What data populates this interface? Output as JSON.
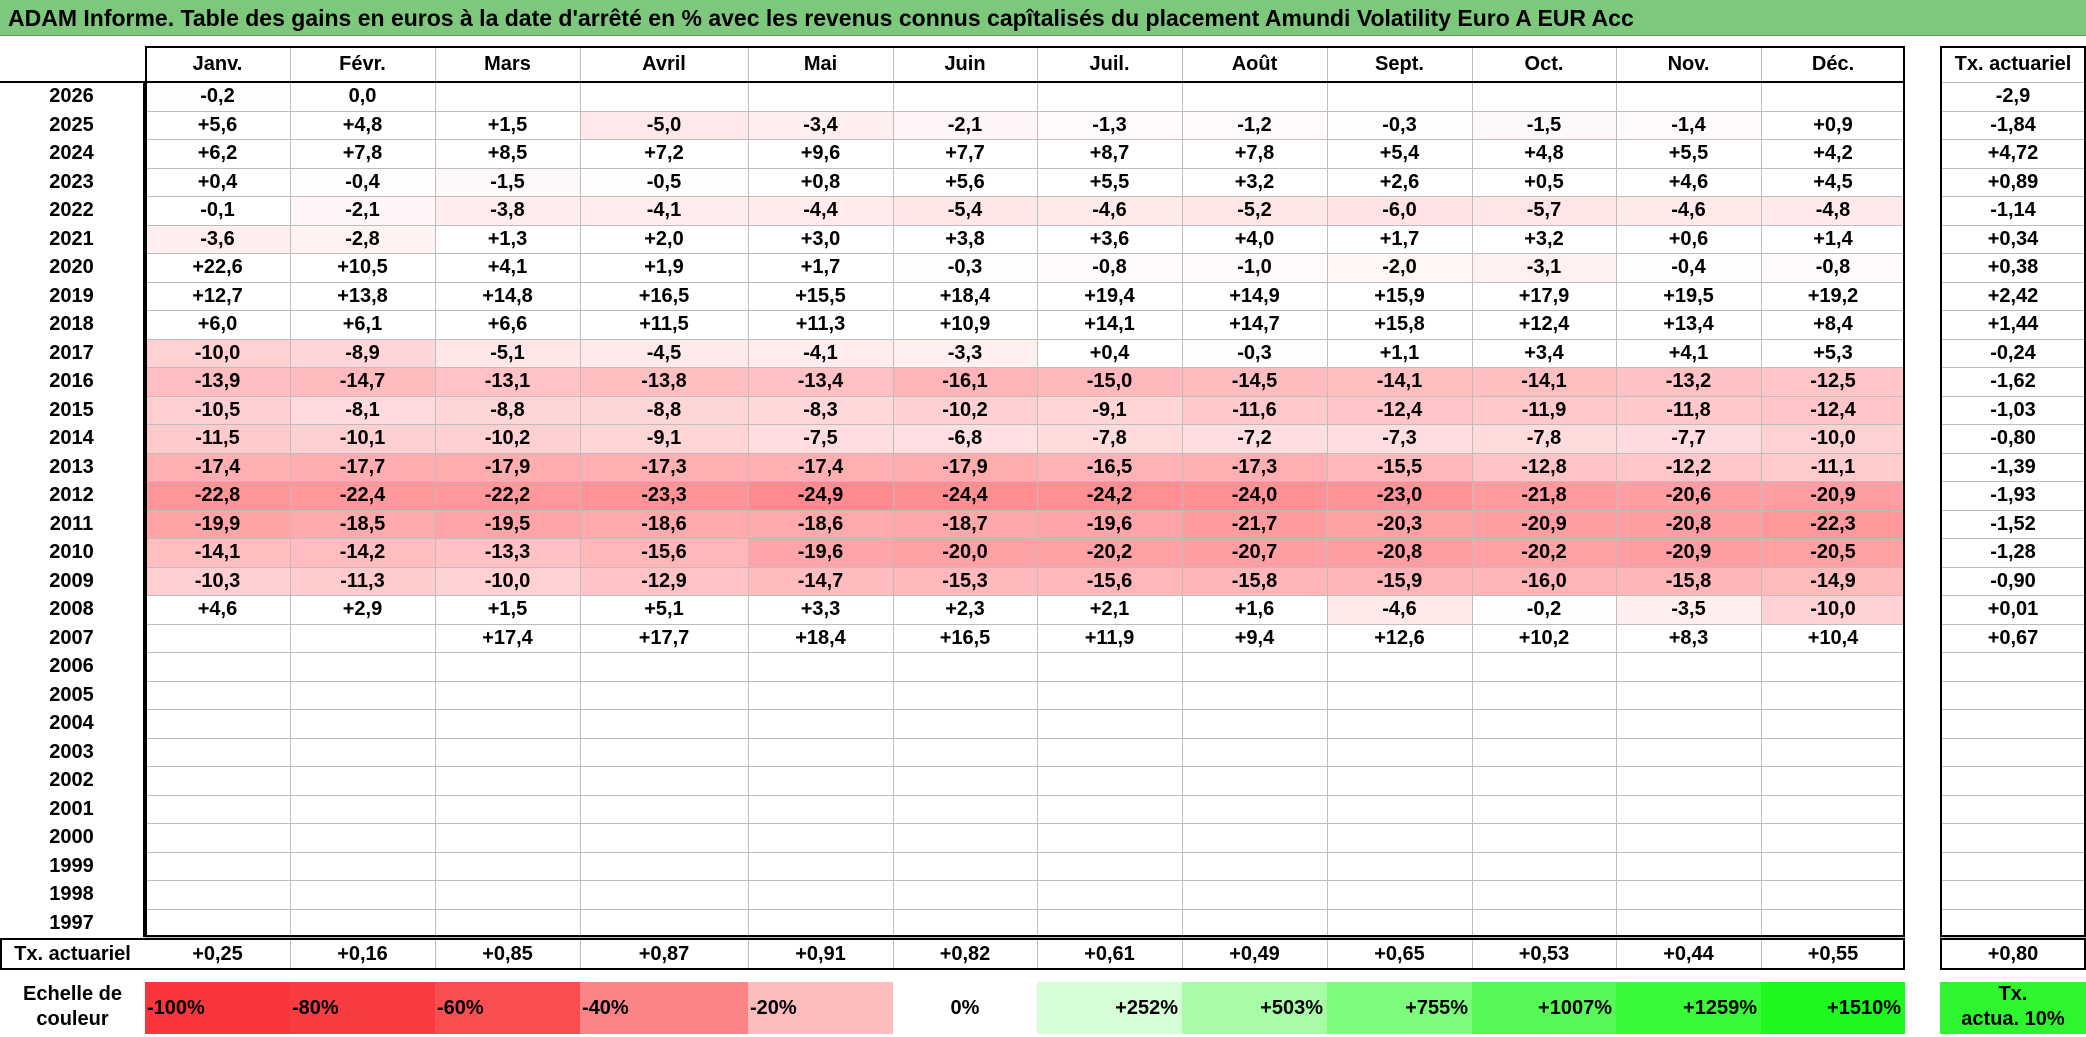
{
  "title": "ADAM Informe. Table des gains en euros à la date d'arrêté en % avec les revenus connus capîtalisés du placement Amundi Volatility Euro A EUR Acc",
  "months": [
    "Janv.",
    "Févr.",
    "Mars",
    "Avril",
    "Mai",
    "Juin",
    "Juil.",
    "Août",
    "Sept.",
    "Oct.",
    "Nov.",
    "Déc."
  ],
  "annual_header": "Tx. actuariel",
  "rows": [
    {
      "year": "2026",
      "v": [
        "-0,2",
        "0,0",
        "",
        "",
        "",
        "",
        "",
        "",
        "",
        "",
        "",
        ""
      ],
      "tx": "-2,9"
    },
    {
      "year": "2025",
      "v": [
        "+5,6",
        "+4,8",
        "+1,5",
        "-5,0",
        "-3,4",
        "-2,1",
        "-1,3",
        "-1,2",
        "-0,3",
        "-1,5",
        "-1,4",
        "+0,9"
      ],
      "tx": "-1,84"
    },
    {
      "year": "2024",
      "v": [
        "+6,2",
        "+7,8",
        "+8,5",
        "+7,2",
        "+9,6",
        "+7,7",
        "+8,7",
        "+7,8",
        "+5,4",
        "+4,8",
        "+5,5",
        "+4,2"
      ],
      "tx": "+4,72"
    },
    {
      "year": "2023",
      "v": [
        "+0,4",
        "-0,4",
        "-1,5",
        "-0,5",
        "+0,8",
        "+5,6",
        "+5,5",
        "+3,2",
        "+2,6",
        "+0,5",
        "+4,6",
        "+4,5"
      ],
      "tx": "+0,89"
    },
    {
      "year": "2022",
      "v": [
        "-0,1",
        "-2,1",
        "-3,8",
        "-4,1",
        "-4,4",
        "-5,4",
        "-4,6",
        "-5,2",
        "-6,0",
        "-5,7",
        "-4,6",
        "-4,8"
      ],
      "tx": "-1,14"
    },
    {
      "year": "2021",
      "v": [
        "-3,6",
        "-2,8",
        "+1,3",
        "+2,0",
        "+3,0",
        "+3,8",
        "+3,6",
        "+4,0",
        "+1,7",
        "+3,2",
        "+0,6",
        "+1,4"
      ],
      "tx": "+0,34"
    },
    {
      "year": "2020",
      "v": [
        "+22,6",
        "+10,5",
        "+4,1",
        "+1,9",
        "+1,7",
        "-0,3",
        "-0,8",
        "-1,0",
        "-2,0",
        "-3,1",
        "-0,4",
        "-0,8"
      ],
      "tx": "+0,38"
    },
    {
      "year": "2019",
      "v": [
        "+12,7",
        "+13,8",
        "+14,8",
        "+16,5",
        "+15,5",
        "+18,4",
        "+19,4",
        "+14,9",
        "+15,9",
        "+17,9",
        "+19,5",
        "+19,2"
      ],
      "tx": "+2,42"
    },
    {
      "year": "2018",
      "v": [
        "+6,0",
        "+6,1",
        "+6,6",
        "+11,5",
        "+11,3",
        "+10,9",
        "+14,1",
        "+14,7",
        "+15,8",
        "+12,4",
        "+13,4",
        "+8,4"
      ],
      "tx": "+1,44"
    },
    {
      "year": "2017",
      "v": [
        "-10,0",
        "-8,9",
        "-5,1",
        "-4,5",
        "-4,1",
        "-3,3",
        "+0,4",
        "-0,3",
        "+1,1",
        "+3,4",
        "+4,1",
        "+5,3"
      ],
      "tx": "-0,24"
    },
    {
      "year": "2016",
      "v": [
        "-13,9",
        "-14,7",
        "-13,1",
        "-13,8",
        "-13,4",
        "-16,1",
        "-15,0",
        "-14,5",
        "-14,1",
        "-14,1",
        "-13,2",
        "-12,5"
      ],
      "tx": "-1,62"
    },
    {
      "year": "2015",
      "v": [
        "-10,5",
        "-8,1",
        "-8,8",
        "-8,8",
        "-8,3",
        "-10,2",
        "-9,1",
        "-11,6",
        "-12,4",
        "-11,9",
        "-11,8",
        "-12,4"
      ],
      "tx": "-1,03"
    },
    {
      "year": "2014",
      "v": [
        "-11,5",
        "-10,1",
        "-10,2",
        "-9,1",
        "-7,5",
        "-6,8",
        "-7,8",
        "-7,2",
        "-7,3",
        "-7,8",
        "-7,7",
        "-10,0"
      ],
      "tx": "-0,80"
    },
    {
      "year": "2013",
      "v": [
        "-17,4",
        "-17,7",
        "-17,9",
        "-17,3",
        "-17,4",
        "-17,9",
        "-16,5",
        "-17,3",
        "-15,5",
        "-12,8",
        "-12,2",
        "-11,1"
      ],
      "tx": "-1,39"
    },
    {
      "year": "2012",
      "v": [
        "-22,8",
        "-22,4",
        "-22,2",
        "-23,3",
        "-24,9",
        "-24,4",
        "-24,2",
        "-24,0",
        "-23,0",
        "-21,8",
        "-20,6",
        "-20,9"
      ],
      "tx": "-1,93"
    },
    {
      "year": "2011",
      "v": [
        "-19,9",
        "-18,5",
        "-19,5",
        "-18,6",
        "-18,6",
        "-18,7",
        "-19,6",
        "-21,7",
        "-20,3",
        "-20,9",
        "-20,8",
        "-22,3"
      ],
      "tx": "-1,52"
    },
    {
      "year": "2010",
      "v": [
        "-14,1",
        "-14,2",
        "-13,3",
        "-15,6",
        "-19,6",
        "-20,0",
        "-20,2",
        "-20,7",
        "-20,8",
        "-20,2",
        "-20,9",
        "-20,5"
      ],
      "tx": "-1,28"
    },
    {
      "year": "2009",
      "v": [
        "-10,3",
        "-11,3",
        "-10,0",
        "-12,9",
        "-14,7",
        "-15,3",
        "-15,6",
        "-15,8",
        "-15,9",
        "-16,0",
        "-15,8",
        "-14,9"
      ],
      "tx": "-0,90"
    },
    {
      "year": "2008",
      "v": [
        "+4,6",
        "+2,9",
        "+1,5",
        "+5,1",
        "+3,3",
        "+2,3",
        "+2,1",
        "+1,6",
        "-4,6",
        "-0,2",
        "-3,5",
        "-10,0"
      ],
      "tx": "+0,01"
    },
    {
      "year": "2007",
      "v": [
        "",
        "",
        "+17,4",
        "+17,7",
        "+18,4",
        "+16,5",
        "+11,9",
        "+9,4",
        "+12,6",
        "+10,2",
        "+8,3",
        "+10,4"
      ],
      "tx": "+0,67"
    },
    {
      "year": "2006",
      "v": [
        "",
        "",
        "",
        "",
        "",
        "",
        "",
        "",
        "",
        "",
        "",
        ""
      ],
      "tx": ""
    },
    {
      "year": "2005",
      "v": [
        "",
        "",
        "",
        "",
        "",
        "",
        "",
        "",
        "",
        "",
        "",
        ""
      ],
      "tx": ""
    },
    {
      "year": "2004",
      "v": [
        "",
        "",
        "",
        "",
        "",
        "",
        "",
        "",
        "",
        "",
        "",
        ""
      ],
      "tx": ""
    },
    {
      "year": "2003",
      "v": [
        "",
        "",
        "",
        "",
        "",
        "",
        "",
        "",
        "",
        "",
        "",
        ""
      ],
      "tx": ""
    },
    {
      "year": "2002",
      "v": [
        "",
        "",
        "",
        "",
        "",
        "",
        "",
        "",
        "",
        "",
        "",
        ""
      ],
      "tx": ""
    },
    {
      "year": "2001",
      "v": [
        "",
        "",
        "",
        "",
        "",
        "",
        "",
        "",
        "",
        "",
        "",
        ""
      ],
      "tx": ""
    },
    {
      "year": "2000",
      "v": [
        "",
        "",
        "",
        "",
        "",
        "",
        "",
        "",
        "",
        "",
        "",
        ""
      ],
      "tx": ""
    },
    {
      "year": "1999",
      "v": [
        "",
        "",
        "",
        "",
        "",
        "",
        "",
        "",
        "",
        "",
        "",
        ""
      ],
      "tx": ""
    },
    {
      "year": "1998",
      "v": [
        "",
        "",
        "",
        "",
        "",
        "",
        "",
        "",
        "",
        "",
        "",
        ""
      ],
      "tx": ""
    },
    {
      "year": "1997",
      "v": [
        "",
        "",
        "",
        "",
        "",
        "",
        "",
        "",
        "",
        "",
        "",
        ""
      ],
      "tx": ""
    }
  ],
  "footer": {
    "label": "Tx. actuariel",
    "values": [
      "+0,25",
      "+0,16",
      "+0,85",
      "+0,87",
      "+0,91",
      "+0,82",
      "+0,61",
      "+0,49",
      "+0,65",
      "+0,53",
      "+0,44",
      "+0,55"
    ],
    "total": "+0,80"
  },
  "scale": {
    "label_line1": "Echelle de",
    "label_line2": "couleur",
    "items": [
      {
        "text": "-100%",
        "color": "#f8363b"
      },
      {
        "text": "-80%",
        "color": "#f83c41"
      },
      {
        "text": "-60%",
        "color": "#f94d52"
      },
      {
        "text": "-40%",
        "color": "#fa8486"
      },
      {
        "text": "-20%",
        "color": "#fcbcbe"
      },
      {
        "text": "0%",
        "color": "#ffffff"
      },
      {
        "text": "+252%",
        "color": "#d7fdd7"
      },
      {
        "text": "+503%",
        "color": "#a8fca8"
      },
      {
        "text": "+755%",
        "color": "#7dfb7d"
      },
      {
        "text": "+1007%",
        "color": "#56fa56"
      },
      {
        "text": "+1259%",
        "color": "#39f939"
      },
      {
        "text": "+1510%",
        "color": "#1ef81e"
      }
    ],
    "annual_line1": "Tx.",
    "annual_line2": "actua. 10%",
    "annual_color": "#2ef52e"
  }
}
